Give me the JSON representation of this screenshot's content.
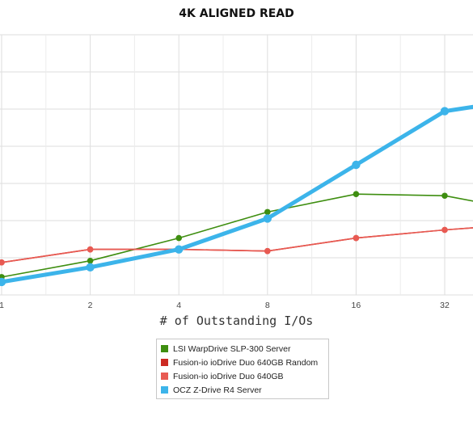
{
  "chart_data": {
    "type": "line",
    "title": "4K ALIGNED READ",
    "xlabel": "# of Outstanding I/Os",
    "ylabel": "",
    "x_scale": "log2",
    "categories": [
      "1",
      "2",
      "4",
      "8",
      "16",
      "32"
    ],
    "x": [
      1,
      2,
      4,
      8,
      16,
      32,
      45
    ],
    "ylim": [
      0,
      8
    ],
    "grid": true,
    "legend_position": "bottom-center",
    "series": [
      {
        "name": "LSI WarpDrive SLP-300 Server",
        "color": "#3e8e10",
        "width": 1.6,
        "dot": 3.8,
        "values": [
          0.55,
          1.05,
          1.75,
          2.55,
          3.1,
          3.05,
          2.8
        ]
      },
      {
        "name": "Fusion-io ioDrive Duo 640GB Random",
        "color": "#cc2a22",
        "width": 1.6,
        "dot": 3.8,
        "values": [
          1.0,
          1.4,
          1.4,
          1.35,
          1.75,
          2.0,
          2.1
        ]
      },
      {
        "name": "Fusion-io ioDrive Duo 640GB",
        "color": "#e85a52",
        "width": 1.6,
        "dot": 3.8,
        "values": [
          1.0,
          1.4,
          1.4,
          1.35,
          1.75,
          2.0,
          2.1
        ]
      },
      {
        "name": "OCZ Z-Drive R4 Server",
        "color": "#3cb4ea",
        "width": 5,
        "dot": 5.2,
        "values": [
          0.4,
          0.85,
          1.4,
          2.35,
          4.0,
          5.65,
          5.85
        ]
      }
    ]
  }
}
